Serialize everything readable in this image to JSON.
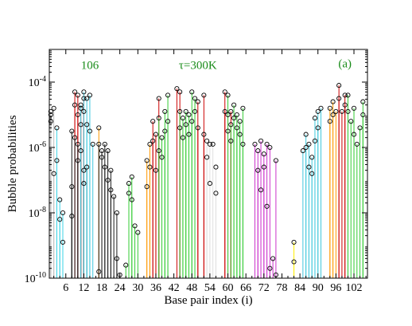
{
  "chart_data": {
    "type": "scatter",
    "title": "",
    "xlabel": "Base pair index (i)",
    "ylabel": "Bubble probabilities",
    "xlim": [
      0.5,
      106.5
    ],
    "ylim_log10": [
      -10,
      -3
    ],
    "y_scale": "log",
    "grid": false,
    "legend": "none",
    "x_ticks": [
      6,
      12,
      18,
      24,
      30,
      36,
      42,
      48,
      54,
      60,
      66,
      72,
      78,
      84,
      90,
      96,
      102
    ],
    "x_tick_labels": [
      "6",
      "12",
      "18",
      "24",
      "30",
      "36",
      "42",
      "48",
      "54",
      "60",
      "66",
      "72",
      "78",
      "84",
      "90",
      "96",
      "102"
    ],
    "y_ticks": [
      -10,
      -8,
      -6,
      -4
    ],
    "y_tick_labels": [
      {
        "base": "10",
        "exp": "-10"
      },
      {
        "base": "10",
        "exp": "-8"
      },
      {
        "base": "10",
        "exp": "-6"
      },
      {
        "base": "10",
        "exp": "-4"
      }
    ],
    "annotations": [
      {
        "text": "106",
        "x": 14,
        "y_log10": -3.6
      },
      {
        "text": "τ=300K",
        "x": 50,
        "y_log10": -3.6
      },
      {
        "text": "(a)",
        "x": 99,
        "y_log10": -3.55
      }
    ],
    "marker": "open-circle",
    "series": [
      {
        "color": "#bfbfbf",
        "points": [
          [
            1,
            -4.9
          ],
          [
            1,
            -5.0
          ],
          [
            1,
            -5.2
          ],
          [
            2,
            -4.8
          ],
          [
            2,
            -6.8
          ]
        ]
      },
      {
        "color": "#3fd4e6",
        "points": [
          [
            3,
            -5.4
          ],
          [
            3,
            -6.4
          ],
          [
            4,
            -7.6
          ],
          [
            4,
            -8.2
          ],
          [
            5,
            -8.9
          ],
          [
            5,
            -8.0
          ]
        ]
      },
      {
        "color": "#cc0000",
        "points": [
          [
            9,
            -4.3
          ],
          [
            9,
            -4.7
          ],
          [
            10,
            -4.4
          ],
          [
            10,
            -5.0
          ],
          [
            11,
            -4.8
          ],
          [
            11,
            -5.3
          ],
          [
            12,
            -4.5
          ],
          [
            12,
            -4.9
          ]
        ]
      },
      {
        "color": "#1a1a1a",
        "points": [
          [
            8,
            -8.1
          ],
          [
            8,
            -7.2
          ],
          [
            8,
            -5.5
          ],
          [
            9,
            -5.7
          ],
          [
            10,
            -5.9
          ],
          [
            10,
            -6.4
          ],
          [
            11,
            -6.1
          ],
          [
            12,
            -6.7
          ],
          [
            12,
            -7.1
          ],
          [
            13,
            -6.6
          ]
        ]
      },
      {
        "color": "#40c8dc",
        "points": [
          [
            11,
            -4.7
          ],
          [
            12,
            -4.3
          ],
          [
            13,
            -4.5
          ],
          [
            13,
            -5.3
          ],
          [
            14,
            -4.4
          ],
          [
            14,
            -5.5
          ],
          [
            15,
            -5.9
          ]
        ]
      },
      {
        "color": "#ff9900",
        "points": [
          [
            17,
            -5.4
          ],
          [
            17,
            -9.8
          ]
        ]
      },
      {
        "color": "#1a1a1a",
        "points": [
          [
            17,
            -5.9
          ],
          [
            18,
            -6.1
          ],
          [
            18,
            -6.3
          ],
          [
            19,
            -5.9
          ],
          [
            19,
            -6.6
          ],
          [
            20,
            -6.1
          ],
          [
            20,
            -7.0
          ],
          [
            21,
            -6.7
          ],
          [
            21,
            -7.3
          ],
          [
            22,
            -7.5
          ],
          [
            23,
            -8.0
          ],
          [
            23,
            -9.4
          ],
          [
            24,
            -9.9
          ]
        ]
      },
      {
        "color": "#33cc33",
        "points": [
          [
            26,
            -9.6
          ],
          [
            27,
            -7.1
          ],
          [
            27,
            -7.4
          ],
          [
            28,
            -6.9
          ],
          [
            28,
            -7.6
          ],
          [
            29,
            -8.4
          ],
          [
            30,
            -8.6
          ]
        ]
      },
      {
        "color": "#ff9900",
        "points": [
          [
            33,
            -6.4
          ],
          [
            33,
            -7.2
          ],
          [
            34,
            -5.9
          ],
          [
            34,
            -6.6
          ]
        ]
      },
      {
        "color": "#cc0000",
        "points": [
          [
            35,
            -5.2
          ],
          [
            35,
            -5.8
          ],
          [
            36,
            -5.6
          ],
          [
            36,
            -6.7
          ],
          [
            37,
            -6.1
          ],
          [
            37,
            -4.5
          ]
        ]
      },
      {
        "color": "#33cc33",
        "points": [
          [
            37,
            -5.1
          ],
          [
            38,
            -5.7
          ],
          [
            38,
            -6.3
          ],
          [
            39,
            -4.9
          ],
          [
            39,
            -5.5
          ],
          [
            40,
            -5.2
          ],
          [
            40,
            -4.4
          ]
        ]
      },
      {
        "color": "#cc0000",
        "points": [
          [
            43,
            -4.2
          ],
          [
            44,
            -4.3
          ],
          [
            44,
            -5.4
          ]
        ]
      },
      {
        "color": "#33cc33",
        "points": [
          [
            44,
            -4.9
          ],
          [
            45,
            -5.1
          ],
          [
            45,
            -5.7
          ],
          [
            46,
            -4.9
          ],
          [
            46,
            -5.3
          ],
          [
            47,
            -5.0
          ],
          [
            47,
            -5.6
          ],
          [
            48,
            -5.2
          ],
          [
            48,
            -4.3
          ],
          [
            49,
            -4.9
          ],
          [
            49,
            -4.5
          ]
        ]
      },
      {
        "color": "#cc0000",
        "points": [
          [
            50,
            -5.4
          ],
          [
            50,
            -4.6
          ],
          [
            52,
            -5.6
          ],
          [
            52,
            -4.4
          ]
        ]
      },
      {
        "color": "#e0e0e0",
        "points": [
          [
            53,
            -5.8
          ],
          [
            53,
            -6.3
          ],
          [
            54,
            -5.9
          ],
          [
            54,
            -7.1
          ],
          [
            55,
            -5.9
          ],
          [
            56,
            -6.6
          ],
          [
            56,
            -7.4
          ]
        ]
      },
      {
        "color": "#cc0000",
        "points": [
          [
            59,
            -4.3
          ],
          [
            59,
            -4.9
          ],
          [
            60,
            -5.0
          ],
          [
            60,
            -5.5
          ],
          [
            61,
            -5.8
          ],
          [
            61,
            -4.9
          ]
        ]
      },
      {
        "color": "#33cc33",
        "points": [
          [
            60,
            -4.4
          ],
          [
            61,
            -5.3
          ],
          [
            62,
            -4.7
          ],
          [
            62,
            -5.1
          ],
          [
            63,
            -5.0
          ],
          [
            63,
            -5.4
          ],
          [
            64,
            -5.2
          ],
          [
            64,
            -5.6
          ],
          [
            65,
            -4.8
          ],
          [
            65,
            -5.9
          ]
        ]
      },
      {
        "color": "#cc33cc",
        "points": [
          [
            69,
            -5.9
          ],
          [
            70,
            -6.1
          ],
          [
            70,
            -6.7
          ],
          [
            71,
            -5.8
          ],
          [
            71,
            -7.3
          ],
          [
            72,
            -6.2
          ],
          [
            72,
            -6.6
          ],
          [
            73,
            -5.9
          ],
          [
            73,
            -7.8
          ],
          [
            74,
            -6.0
          ],
          [
            74,
            -9.7
          ],
          [
            75,
            -9.4
          ],
          [
            76,
            -6.4
          ],
          [
            76,
            -9.9
          ]
        ]
      },
      {
        "color": "#ffee00",
        "points": [
          [
            82,
            -8.9
          ],
          [
            82,
            -9.5
          ]
        ]
      },
      {
        "color": "#40c8dc",
        "points": [
          [
            85,
            -6.1
          ],
          [
            86,
            -6.0
          ],
          [
            86,
            -5.6
          ],
          [
            87,
            -5.9
          ],
          [
            87,
            -6.6
          ],
          [
            88,
            -6.3
          ],
          [
            88,
            -6.8
          ],
          [
            89,
            -5.1
          ],
          [
            89,
            -5.8
          ],
          [
            90,
            -4.9
          ],
          [
            90,
            -5.4
          ],
          [
            91,
            -4.8
          ]
        ]
      },
      {
        "color": "#ff9900",
        "points": [
          [
            94,
            -4.8
          ],
          [
            94,
            -5.2
          ],
          [
            95,
            -4.6
          ],
          [
            95,
            -5.0
          ],
          [
            96,
            -4.9
          ]
        ]
      },
      {
        "color": "#cc0000",
        "points": [
          [
            97,
            -4.1
          ],
          [
            97,
            -4.5
          ],
          [
            98,
            -4.9
          ],
          [
            99,
            -4.4
          ],
          [
            99,
            -4.7
          ]
        ]
      },
      {
        "color": "#33cc33",
        "points": [
          [
            100,
            -4.4
          ],
          [
            100,
            -4.9
          ],
          [
            101,
            -5.2
          ],
          [
            102,
            -4.8
          ],
          [
            102,
            -5.6
          ],
          [
            103,
            -5.9
          ],
          [
            104,
            -5.4
          ],
          [
            105,
            -5.0
          ],
          [
            105,
            -4.6
          ]
        ]
      }
    ]
  }
}
